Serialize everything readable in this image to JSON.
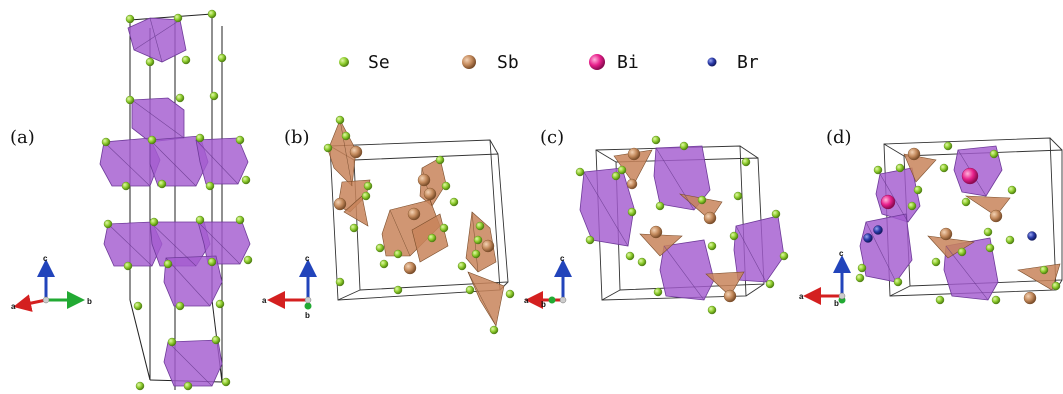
{
  "panels": [
    {
      "label": "(a)",
      "axes": [
        "c",
        "a",
        "b"
      ]
    },
    {
      "label": "(b)",
      "axes": [
        "c",
        "a",
        "b"
      ]
    },
    {
      "label": "(c)",
      "axes": [
        "c",
        "a",
        "b"
      ]
    },
    {
      "label": "(d)",
      "axes": [
        "c",
        "a",
        "b"
      ]
    }
  ],
  "legend": [
    {
      "label": "Se",
      "color": "#8fce2e"
    },
    {
      "label": "Sb",
      "color": "#c48a5c"
    },
    {
      "label": "Bi",
      "color": "#e8208c"
    },
    {
      "label": "Br",
      "color": "#2a3aa8"
    }
  ],
  "colors": {
    "octahedron": "#a35ccf",
    "sb_polyhedron": "#c8845a",
    "axis_a": "#d42020",
    "axis_b": "#22aa33",
    "axis_c": "#2244bb"
  }
}
